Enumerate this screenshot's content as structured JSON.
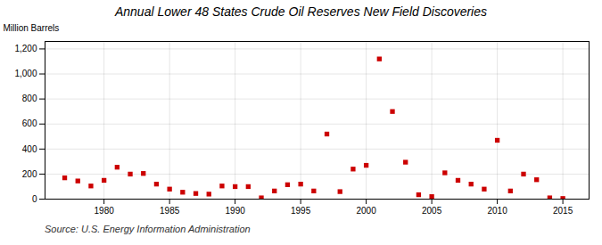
{
  "chart_data": {
    "type": "scatter",
    "title": "Annual Lower 48 States Crude Oil Reserves New Field Discoveries",
    "ylabel": "Million Barrels",
    "annotations": [
      "Source: U.S. Energy Information Administration"
    ],
    "x": [
      1977,
      1978,
      1979,
      1980,
      1981,
      1982,
      1983,
      1984,
      1985,
      1986,
      1987,
      1988,
      1989,
      1990,
      1991,
      1992,
      1993,
      1994,
      1995,
      1996,
      1997,
      1998,
      1999,
      2000,
      2001,
      2002,
      2003,
      2004,
      2005,
      2006,
      2007,
      2008,
      2009,
      2010,
      2011,
      2012,
      2013,
      2014,
      2015
    ],
    "values": [
      170,
      145,
      105,
      150,
      255,
      200,
      205,
      120,
      80,
      55,
      45,
      40,
      105,
      100,
      100,
      10,
      65,
      115,
      120,
      65,
      520,
      60,
      240,
      270,
      1120,
      700,
      295,
      35,
      20,
      210,
      150,
      120,
      80,
      470,
      65,
      200,
      155,
      10,
      5
    ],
    "color": "#cc0000",
    "marker": "square",
    "xlim": [
      1975.5,
      2017
    ],
    "xticks": [
      1980,
      1985,
      1990,
      1995,
      2000,
      2005,
      2010,
      2015
    ],
    "ylim": [
      0,
      1260
    ],
    "yticks": [
      0,
      200,
      400,
      600,
      {
        "value": 1000,
        "label": "1,000"
      },
      {
        "value": 1200,
        "label": "1,200"
      },
      800
    ],
    "grid": true
  }
}
